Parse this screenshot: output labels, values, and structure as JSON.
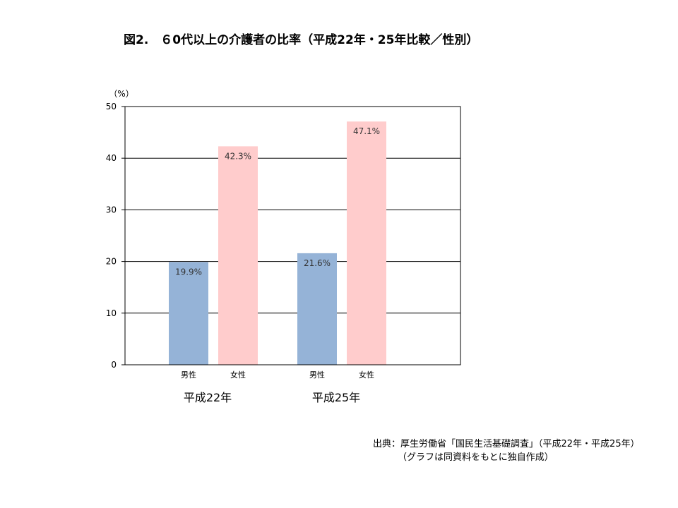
{
  "title": "図2.　６0代以上の介護者の比率（平成22年・25年比較／性別）",
  "source": {
    "line1": "出典：厚生労働省「国民生活基礎調査」（平成22年・平成25年）",
    "line2": "（グラフは同資料をもとに独自作成）"
  },
  "chart_data": {
    "type": "bar",
    "unit_label": "（%）",
    "ylim": [
      0,
      50
    ],
    "yticks": [
      0,
      10,
      20,
      30,
      40,
      50
    ],
    "grid": true,
    "groups": [
      {
        "label": "平成22年",
        "bars": [
          {
            "category": "男性",
            "value": 19.9,
            "label": "19.9%",
            "color": "#95b3d7"
          },
          {
            "category": "女性",
            "value": 42.3,
            "label": "42.3%",
            "color": "#ffcccc"
          }
        ]
      },
      {
        "label": "平成25年",
        "bars": [
          {
            "category": "男性",
            "value": 21.6,
            "label": "21.6%",
            "color": "#95b3d7"
          },
          {
            "category": "女性",
            "value": 47.1,
            "label": "47.1%",
            "color": "#ffcccc"
          }
        ]
      }
    ]
  }
}
